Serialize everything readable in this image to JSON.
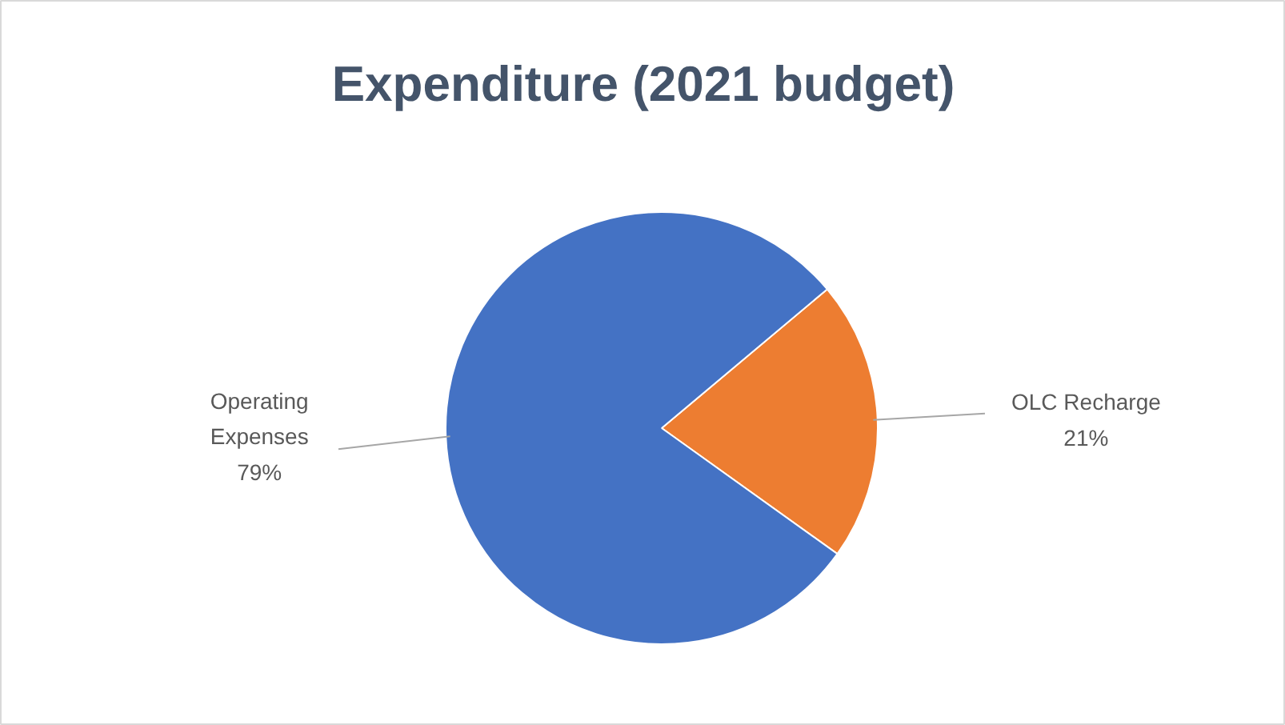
{
  "chart_data": {
    "type": "pie",
    "title": "Expenditure (2021 budget)",
    "categories": [
      "OLC Recharge",
      "Operating Expenses"
    ],
    "values": [
      21,
      79
    ],
    "colors": [
      "#ed7d31",
      "#4472c4"
    ],
    "value_labels": [
      "21%",
      "79%"
    ]
  }
}
